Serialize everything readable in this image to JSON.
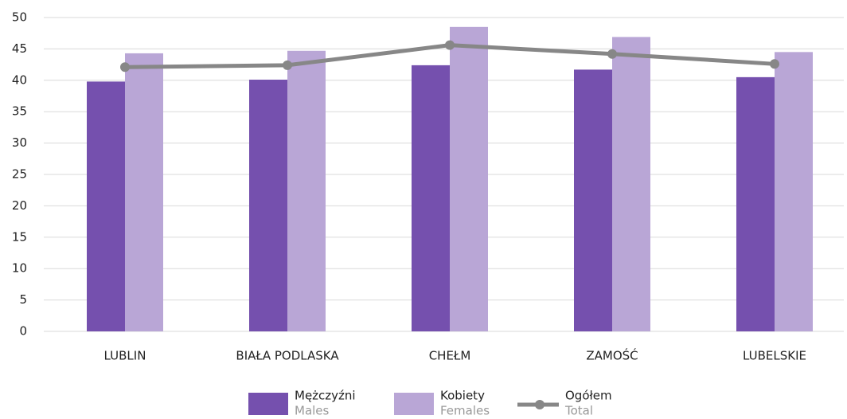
{
  "chart_data": {
    "type": "bar_line",
    "categories": [
      "LUBLIN",
      "BIAŁA PODLASKA",
      "CHEŁM",
      "ZAMOŚĆ",
      "LUBELSKIE"
    ],
    "series": [
      {
        "name": "Mężczyźni",
        "name_en": "Males",
        "type": "bar",
        "color": "#7550ae",
        "values": [
          39.8,
          40.1,
          42.4,
          41.7,
          40.5
        ]
      },
      {
        "name": "Kobiety",
        "name_en": "Females",
        "type": "bar",
        "color": "#b9a6d6",
        "values": [
          44.3,
          44.7,
          48.5,
          46.9,
          44.5
        ]
      },
      {
        "name": "Ogółem",
        "name_en": "Total",
        "type": "line",
        "color": "#878787",
        "values": [
          42.1,
          42.4,
          45.6,
          44.2,
          42.6
        ]
      }
    ],
    "ylim": [
      0,
      50
    ],
    "yticks": [
      0,
      5,
      10,
      15,
      20,
      25,
      30,
      35,
      40,
      45,
      50
    ],
    "grid": true,
    "legend": "bottom"
  }
}
